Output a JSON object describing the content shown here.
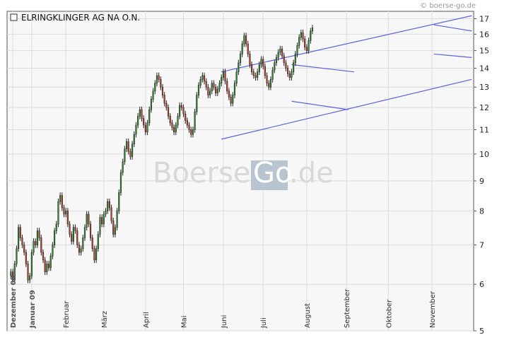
{
  "source_label": "© boerse-go.de",
  "watermark": {
    "left": "Boerse",
    "highlight": "Go",
    "right": ".de"
  },
  "chart_data": {
    "type": "candlestick",
    "title": "ELRINGKLINGER AG NA O.N.",
    "scale": "log",
    "ylim": [
      5,
      17.5
    ],
    "y_ticks": [
      5,
      6,
      7,
      8,
      9,
      10,
      11,
      12,
      13,
      14,
      15,
      16,
      17
    ],
    "grid": true,
    "x_labels": [
      {
        "label": "Dezember 08",
        "bold": true,
        "x": 1
      },
      {
        "label": "Januar 09",
        "bold": true,
        "x": 11
      },
      {
        "label": "Februar",
        "bold": false,
        "x": 29
      },
      {
        "label": "März",
        "bold": false,
        "x": 49
      },
      {
        "label": "April",
        "bold": false,
        "x": 71
      },
      {
        "label": "Mai",
        "bold": false,
        "x": 91
      },
      {
        "label": "Juni",
        "bold": false,
        "x": 112
      },
      {
        "label": "Juli",
        "bold": false,
        "x": 133
      },
      {
        "label": "August",
        "bold": false,
        "x": 156
      },
      {
        "label": "September",
        "bold": false,
        "x": 177
      },
      {
        "label": "Oktober",
        "bold": false,
        "x": 199
      },
      {
        "label": "November",
        "bold": false,
        "x": 222
      }
    ],
    "x_range": [
      -2,
      244
    ],
    "close_series": [
      6.3,
      6.1,
      6.5,
      6.9,
      7.5,
      7.2,
      7.0,
      6.8,
      6.5,
      6.1,
      6.2,
      6.8,
      7.1,
      7.0,
      7.4,
      7.2,
      6.8,
      6.6,
      6.3,
      6.5,
      6.4,
      6.7,
      7.0,
      7.4,
      7.6,
      8.3,
      8.5,
      8.1,
      7.9,
      8.0,
      7.6,
      7.3,
      7.1,
      7.5,
      7.4,
      7.0,
      6.8,
      6.9,
      7.2,
      7.5,
      7.9,
      7.6,
      7.2,
      6.9,
      6.6,
      6.9,
      7.3,
      7.8,
      7.6,
      7.9,
      8.0,
      8.3,
      8.1,
      7.7,
      7.3,
      7.5,
      8.0,
      8.6,
      9.3,
      9.7,
      10.2,
      10.5,
      10.1,
      9.9,
      10.4,
      10.8,
      11.2,
      11.6,
      11.9,
      11.5,
      11.2,
      10.9,
      11.3,
      11.9,
      12.4,
      12.8,
      13.2,
      13.6,
      13.4,
      13.0,
      12.6,
      12.2,
      12.0,
      11.6,
      11.3,
      11.1,
      10.9,
      11.2,
      11.6,
      12.1,
      12.0,
      11.7,
      11.4,
      11.2,
      11.0,
      10.8,
      11.0,
      11.8,
      12.6,
      13.1,
      13.4,
      13.6,
      13.3,
      13.0,
      12.6,
      12.8,
      13.2,
      13.0,
      12.7,
      12.9,
      13.2,
      13.5,
      13.8,
      13.3,
      12.8,
      12.5,
      12.2,
      12.6,
      13.2,
      13.8,
      14.3,
      14.8,
      15.4,
      15.9,
      15.4,
      14.8,
      14.2,
      13.8,
      13.6,
      13.5,
      13.8,
      14.2,
      14.5,
      14.1,
      13.6,
      13.2,
      13.0,
      13.4,
      13.9,
      14.3,
      14.6,
      14.9,
      15.1,
      14.7,
      14.3,
      14.0,
      13.7,
      13.5,
      13.8,
      14.3,
      14.8,
      15.3,
      15.8,
      16.1,
      15.7,
      15.2,
      15.0,
      15.6,
      16.2,
      16.4
    ],
    "trend_lines": [
      {
        "from": [
          111,
          13.8
        ],
        "to": [
          243,
          17.2
        ]
      },
      {
        "from": [
          111,
          10.6
        ],
        "to": [
          243,
          13.4
        ]
      },
      {
        "from": [
          148,
          14.2
        ],
        "to": [
          181,
          13.8
        ]
      },
      {
        "from": [
          148,
          12.3
        ],
        "to": [
          178,
          11.9
        ]
      },
      {
        "from": [
          223,
          16.6
        ],
        "to": [
          243,
          16.2
        ]
      },
      {
        "from": [
          223,
          14.8
        ],
        "to": [
          243,
          14.6
        ]
      }
    ]
  }
}
